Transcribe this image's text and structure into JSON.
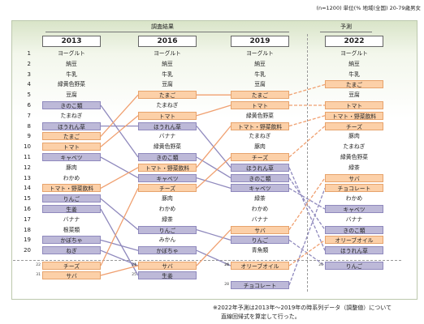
{
  "header": {
    "unit_note": "(n=1200) 単位(% 地域(全国) 20-79歳男女",
    "survey_label": "調査結果",
    "forecast_label": "予測"
  },
  "years": [
    "2013",
    "2016",
    "2019",
    "2022"
  ],
  "rank_numbers": [
    "1",
    "2",
    "3",
    "4",
    "5",
    "6",
    "7",
    "8",
    "9",
    "10",
    "11",
    "12",
    "13",
    "14",
    "15",
    "16",
    "17",
    "18",
    "19",
    "20"
  ],
  "columns": [
    {
      "year": "2013",
      "items": [
        {
          "rank": 1,
          "label": "ヨーグルト",
          "style": "plain"
        },
        {
          "rank": 2,
          "label": "納豆",
          "style": "plain"
        },
        {
          "rank": 3,
          "label": "牛乳",
          "style": "plain"
        },
        {
          "rank": 4,
          "label": "緑黄色野菜",
          "style": "plain"
        },
        {
          "rank": 5,
          "label": "豆腐",
          "style": "plain"
        },
        {
          "rank": 6,
          "label": "きのこ類",
          "style": "down"
        },
        {
          "rank": 7,
          "label": "たまねぎ",
          "style": "plain"
        },
        {
          "rank": 8,
          "label": "ほうれん草",
          "style": "down"
        },
        {
          "rank": 9,
          "label": "たまご",
          "style": "up"
        },
        {
          "rank": 10,
          "label": "トマト",
          "style": "up"
        },
        {
          "rank": 11,
          "label": "キャベツ",
          "style": "down"
        },
        {
          "rank": 12,
          "label": "豚肉",
          "style": "plain"
        },
        {
          "rank": 13,
          "label": "わかめ",
          "style": "plain"
        },
        {
          "rank": 14,
          "label": "トマト・野菜飲料",
          "style": "up"
        },
        {
          "rank": 15,
          "label": "りんご",
          "style": "down"
        },
        {
          "rank": 16,
          "label": "生姜",
          "style": "down"
        },
        {
          "rank": 17,
          "label": "バナナ",
          "style": "plain"
        },
        {
          "rank": 18,
          "label": "根菜類",
          "style": "plain"
        },
        {
          "rank": 19,
          "label": "かぼちゃ",
          "style": "down"
        },
        {
          "rank": 20,
          "label": "ねぎ",
          "style": "down"
        },
        {
          "rank": 22,
          "label": "チーズ",
          "style": "up"
        },
        {
          "rank": 31,
          "label": "サバ",
          "style": "up"
        }
      ]
    },
    {
      "year": "2016",
      "items": [
        {
          "rank": 1,
          "label": "ヨーグルト",
          "style": "plain"
        },
        {
          "rank": 2,
          "label": "納豆",
          "style": "plain"
        },
        {
          "rank": 3,
          "label": "牛乳",
          "style": "plain"
        },
        {
          "rank": 4,
          "label": "豆腐",
          "style": "plain"
        },
        {
          "rank": 5,
          "label": "たまご",
          "style": "up"
        },
        {
          "rank": 6,
          "label": "たまねぎ",
          "style": "plain"
        },
        {
          "rank": 7,
          "label": "トマト",
          "style": "up"
        },
        {
          "rank": 8,
          "label": "ほうれん草",
          "style": "down"
        },
        {
          "rank": 9,
          "label": "バナナ",
          "style": "plain"
        },
        {
          "rank": 10,
          "label": "緑黄色野菜",
          "style": "plain"
        },
        {
          "rank": 11,
          "label": "きのこ類",
          "style": "down"
        },
        {
          "rank": 12,
          "label": "トマト・野菜飲料",
          "style": "up"
        },
        {
          "rank": 13,
          "label": "キャベツ",
          "style": "down"
        },
        {
          "rank": 14,
          "label": "チーズ",
          "style": "up"
        },
        {
          "rank": 15,
          "label": "豚肉",
          "style": "plain"
        },
        {
          "rank": 16,
          "label": "わかめ",
          "style": "plain"
        },
        {
          "rank": 17,
          "label": "緑茶",
          "style": "plain"
        },
        {
          "rank": 18,
          "label": "りんご",
          "style": "down"
        },
        {
          "rank": 19,
          "label": "みかん",
          "style": "plain"
        },
        {
          "rank": 20,
          "label": "かぼちゃ",
          "style": "down"
        },
        {
          "rank": 21,
          "label": "ねぎ",
          "style": "down"
        },
        {
          "rank": 24,
          "label": "サバ",
          "style": "up"
        },
        {
          "rank": 25,
          "label": "生姜",
          "style": "down"
        }
      ]
    },
    {
      "year": "2019",
      "items": [
        {
          "rank": 1,
          "label": "ヨーグルト",
          "style": "plain"
        },
        {
          "rank": 2,
          "label": "納豆",
          "style": "plain"
        },
        {
          "rank": 3,
          "label": "牛乳",
          "style": "plain"
        },
        {
          "rank": 4,
          "label": "豆腐",
          "style": "plain"
        },
        {
          "rank": 5,
          "label": "たまご",
          "style": "up"
        },
        {
          "rank": 6,
          "label": "トマト",
          "style": "up"
        },
        {
          "rank": 7,
          "label": "緑黄色野菜",
          "style": "plain"
        },
        {
          "rank": 8,
          "label": "トマト・野菜飲料",
          "style": "up"
        },
        {
          "rank": 9,
          "label": "たまねぎ",
          "style": "plain"
        },
        {
          "rank": 10,
          "label": "豚肉",
          "style": "plain"
        },
        {
          "rank": 11,
          "label": "チーズ",
          "style": "up"
        },
        {
          "rank": 12,
          "label": "ほうれん草",
          "style": "down"
        },
        {
          "rank": 13,
          "label": "きのこ類",
          "style": "down"
        },
        {
          "rank": 14,
          "label": "キャベツ",
          "style": "down"
        },
        {
          "rank": 15,
          "label": "緑茶",
          "style": "plain"
        },
        {
          "rank": 16,
          "label": "わかめ",
          "style": "plain"
        },
        {
          "rank": 17,
          "label": "バナナ",
          "style": "plain"
        },
        {
          "rank": 18,
          "label": "サバ",
          "style": "up"
        },
        {
          "rank": 19,
          "label": "りんご",
          "style": "down"
        },
        {
          "rank": 20,
          "label": "青魚類",
          "style": "plain"
        },
        {
          "rank": 24,
          "label": "かぼちゃ",
          "style": "down"
        },
        {
          "rank": 26,
          "label": "オリーブオイル",
          "style": "up"
        },
        {
          "rank": 28,
          "label": "チョコレート",
          "style": "down"
        }
      ]
    },
    {
      "year": "2022",
      "items": [
        {
          "rank": 1,
          "label": "ヨーグルト",
          "style": "plain"
        },
        {
          "rank": 2,
          "label": "納豆",
          "style": "plain"
        },
        {
          "rank": 3,
          "label": "牛乳",
          "style": "plain"
        },
        {
          "rank": 4,
          "label": "たまご",
          "style": "up"
        },
        {
          "rank": 5,
          "label": "豆腐",
          "style": "plain"
        },
        {
          "rank": 6,
          "label": "トマト",
          "style": "up"
        },
        {
          "rank": 7,
          "label": "トマト・野菜飲料",
          "style": "up"
        },
        {
          "rank": 8,
          "label": "チーズ",
          "style": "up"
        },
        {
          "rank": 9,
          "label": "豚肉",
          "style": "plain"
        },
        {
          "rank": 10,
          "label": "たまねぎ",
          "style": "plain"
        },
        {
          "rank": 11,
          "label": "緑黄色野菜",
          "style": "plain"
        },
        {
          "rank": 12,
          "label": "緑茶",
          "style": "plain"
        },
        {
          "rank": 13,
          "label": "サバ",
          "style": "up"
        },
        {
          "rank": 14,
          "label": "チョコレート",
          "style": "up"
        },
        {
          "rank": 15,
          "label": "わかめ",
          "style": "plain"
        },
        {
          "rank": 16,
          "label": "キャベツ",
          "style": "down"
        },
        {
          "rank": 17,
          "label": "バナナ",
          "style": "plain"
        },
        {
          "rank": 18,
          "label": "きのこ類",
          "style": "down"
        },
        {
          "rank": 19,
          "label": "オリーブオイル",
          "style": "up"
        },
        {
          "rank": 20,
          "label": "ほうれん草",
          "style": "down"
        },
        {
          "rank": 26,
          "label": "りんご",
          "style": "down"
        }
      ]
    }
  ],
  "colors": {
    "up": "#fcd0a8",
    "down": "#bdb9d8",
    "up_line": "#f0a070",
    "down_line": "#8f89bd"
  },
  "footnote": {
    "line1": "※2022年予測は2013年～2019年の時系列データ（調整値）について",
    "line2": "直線回帰式を算定して行った。"
  }
}
